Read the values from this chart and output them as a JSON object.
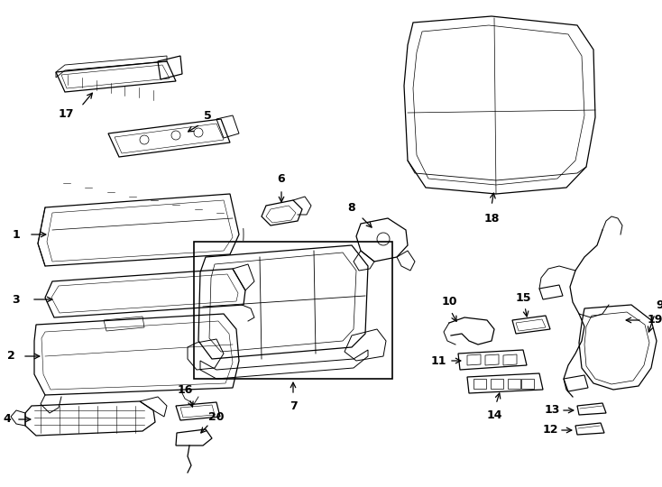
{
  "bg_color": "#ffffff",
  "line_color": "#000000",
  "figsize": [
    7.34,
    5.4
  ],
  "dpi": 100
}
